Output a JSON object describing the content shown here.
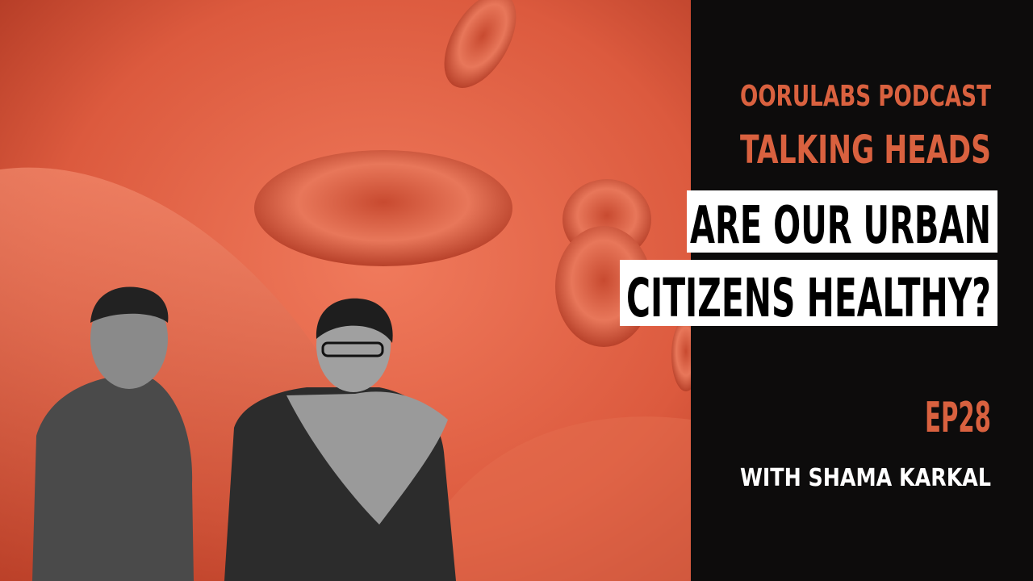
{
  "header": {
    "show": "OORULABS PODCAST",
    "series": "TALKING HEADS"
  },
  "headline": {
    "lines": [
      "ARE OUR URBAN",
      "CITIZENS HEALTHY?"
    ]
  },
  "episode": {
    "number": "EP28",
    "guest": "WITH SHAMA KARKAL"
  }
}
